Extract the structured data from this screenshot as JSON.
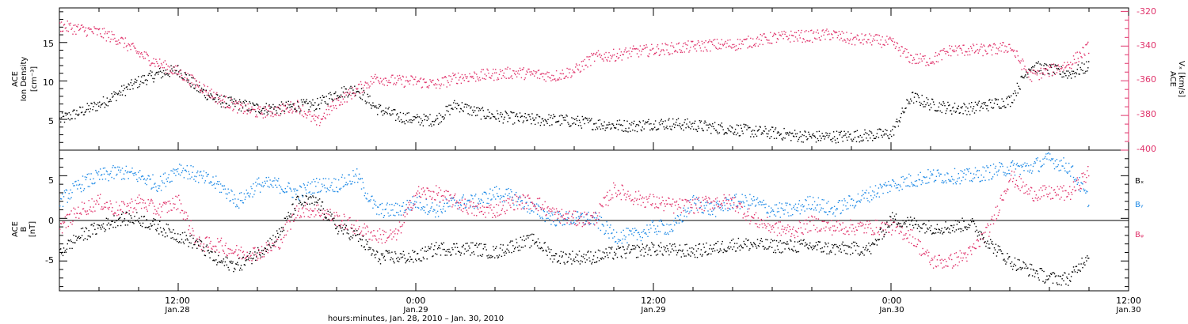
{
  "colors": {
    "black": "#000000",
    "blue": "#1f8ae6",
    "pink": "#e0336b"
  },
  "top_panel": {
    "ylabel_lines": [
      "ACE",
      "Ion Density",
      "[cm⁻³]"
    ],
    "yticks": [
      "5",
      "10",
      "15"
    ],
    "right_ylabel_lines": [
      "ACE",
      "Vₓ [km/s]"
    ],
    "right_yticks": [
      "-320",
      "-340",
      "-360",
      "-380",
      "-400"
    ]
  },
  "bottom_panel": {
    "ylabel_lines": [
      "ACE",
      "B",
      "[nT]"
    ],
    "yticks": [
      "5",
      "0",
      "-5"
    ],
    "legend": [
      "Bₓ",
      "Bᵧ",
      "Bᵩ"
    ]
  },
  "xaxis": {
    "ticks": [
      {
        "time": "12:00",
        "date": "Jan.28"
      },
      {
        "time": "0:00",
        "date": "Jan.29"
      },
      {
        "time": "12:00",
        "date": "Jan.29"
      },
      {
        "time": "0:00",
        "date": "Jan.30"
      },
      {
        "time": "12:00",
        "date": "Jan.30"
      }
    ],
    "title": "hours:minutes, Jan. 28, 2010 – Jan. 30, 2010"
  },
  "chart_data": [
    {
      "type": "scatter",
      "panel": "ion density and Vx",
      "x_unit": "hours since 00:00 Jan. 28, 2010",
      "xlim": [
        6,
        60
      ],
      "ylim_left": [
        1,
        19.5
      ],
      "ylim_right": [
        -400,
        -318
      ],
      "series": [
        {
          "name": "Ion Density",
          "axis": "left",
          "color": "black",
          "x": [
            6,
            7,
            8,
            9,
            10,
            11,
            12,
            13,
            14,
            15,
            16,
            17,
            18,
            19,
            20,
            21,
            22,
            23,
            24,
            25,
            26,
            27,
            28,
            29,
            30,
            31,
            32,
            33,
            34,
            35,
            36,
            37,
            38,
            39,
            40,
            41,
            42,
            43,
            44,
            45,
            46,
            47,
            48,
            49,
            50,
            51,
            52,
            53,
            54,
            55,
            56,
            57,
            58
          ],
          "y": [
            5,
            6,
            7,
            8.5,
            10,
            11,
            11.5,
            9,
            7.5,
            7,
            6.5,
            6.5,
            6.8,
            7,
            8.5,
            9,
            6.5,
            5.5,
            5,
            5,
            7,
            6,
            5.5,
            5.2,
            5,
            5,
            4.8,
            4.5,
            4.3,
            4.2,
            4.5,
            4.5,
            4.3,
            4,
            3.8,
            3.5,
            3.3,
            3,
            2.8,
            2.8,
            2.9,
            3,
            3.2,
            8,
            7,
            6.5,
            6.5,
            7,
            7.5,
            12,
            11.5,
            11,
            12
          ]
        },
        {
          "name": "Vx",
          "axis": "right",
          "color": "pink",
          "x": [
            6,
            7,
            8,
            9,
            10,
            11,
            12,
            13,
            14,
            15,
            16,
            17,
            18,
            19,
            20,
            21,
            22,
            23,
            24,
            25,
            26,
            27,
            28,
            29,
            30,
            31,
            32,
            33,
            34,
            35,
            36,
            37,
            38,
            39,
            40,
            41,
            42,
            43,
            44,
            45,
            46,
            47,
            48,
            49,
            50,
            51,
            52,
            53,
            54,
            55,
            56,
            57,
            58
          ],
          "y": [
            -328,
            -330,
            -332,
            -336,
            -344,
            -350,
            -355,
            -362,
            -370,
            -375,
            -378,
            -377,
            -374,
            -384,
            -372,
            -365,
            -358,
            -360,
            -360,
            -362,
            -358,
            -357,
            -356,
            -355,
            -356,
            -357,
            -354,
            -346,
            -345,
            -343,
            -342,
            -341,
            -340,
            -339,
            -339,
            -337,
            -335,
            -334,
            -334,
            -333,
            -336,
            -336,
            -338,
            -347,
            -348,
            -342,
            -342,
            -342,
            -340,
            -357,
            -354,
            -350,
            -340
          ]
        }
      ]
    },
    {
      "type": "scatter",
      "panel": "magnetic field B",
      "x_unit": "hours since 00:00 Jan. 28, 2010",
      "xlim": [
        6,
        60
      ],
      "ylim": [
        -8.5,
        8
      ],
      "series": [
        {
          "name": "Bₓ",
          "color": "black",
          "x": [
            6,
            7,
            8,
            9,
            10,
            11,
            12,
            13,
            14,
            15,
            16,
            17,
            18,
            19,
            20,
            21,
            22,
            23,
            24,
            25,
            26,
            27,
            28,
            29,
            30,
            31,
            32,
            33,
            34,
            35,
            36,
            37,
            38,
            39,
            40,
            41,
            42,
            43,
            44,
            45,
            46,
            47,
            48,
            49,
            50,
            51,
            52,
            53,
            54,
            55,
            56,
            57,
            58
          ],
          "y": [
            -4,
            -2,
            -1,
            0,
            0,
            -1,
            -2,
            -3,
            -5,
            -5.5,
            -4,
            -2,
            2,
            2,
            -1,
            -2,
            -4.5,
            -4.5,
            -4.5,
            -3.5,
            -3.5,
            -3.5,
            -4,
            -3,
            -2.5,
            -4.5,
            -4.5,
            -4.5,
            -4,
            -3.8,
            -3.5,
            -3.7,
            -3.8,
            -3.5,
            -3,
            -3,
            -3.2,
            -3.2,
            -3.2,
            -3.5,
            -3.5,
            -3.5,
            0,
            -0.5,
            -1,
            -1,
            -0.5,
            -3,
            -5,
            -6,
            -7,
            -7,
            -4
          ]
        },
        {
          "name": "Bᵧ",
          "color": "blue",
          "x": [
            6,
            7,
            8,
            9,
            10,
            11,
            12,
            13,
            14,
            15,
            16,
            17,
            18,
            19,
            20,
            21,
            22,
            23,
            24,
            25,
            26,
            27,
            28,
            29,
            30,
            31,
            32,
            33,
            34,
            35,
            36,
            37,
            38,
            39,
            40,
            41,
            42,
            43,
            44,
            45,
            46,
            47,
            48,
            49,
            50,
            51,
            52,
            53,
            54,
            55,
            56,
            57,
            58
          ],
          "y": [
            2,
            4,
            5,
            5.5,
            5,
            4,
            6,
            5,
            4,
            2,
            4,
            4,
            3,
            4,
            4,
            5,
            1,
            1,
            2,
            1,
            2,
            2,
            3,
            2.5,
            1,
            0,
            0,
            0,
            -2,
            -2,
            -1,
            -1,
            2,
            1,
            2,
            2,
            1,
            1,
            2,
            1,
            2,
            3,
            4,
            4.5,
            5,
            5,
            5,
            5.5,
            6,
            6,
            7,
            6,
            2
          ]
        },
        {
          "name": "Bᵩ",
          "color": "pink",
          "x": [
            6,
            7,
            8,
            9,
            10,
            11,
            12,
            13,
            14,
            15,
            16,
            17,
            18,
            19,
            20,
            21,
            22,
            23,
            24,
            25,
            26,
            27,
            28,
            29,
            30,
            31,
            32,
            33,
            34,
            35,
            36,
            37,
            38,
            39,
            40,
            41,
            42,
            43,
            44,
            45,
            46,
            47,
            48,
            49,
            50,
            51,
            52,
            53,
            54,
            55,
            56,
            57,
            58
          ],
          "y": [
            -1,
            1,
            2,
            1,
            2,
            1,
            2,
            -3,
            -3,
            -4,
            -4,
            -3,
            1,
            1,
            0,
            -1,
            -2,
            -2,
            3,
            3,
            2,
            1,
            1,
            2,
            2,
            0.5,
            0,
            0,
            3.5,
            2.5,
            2,
            1.5,
            1.5,
            2,
            2,
            0,
            -1,
            -1.5,
            -0.5,
            -1,
            -1,
            -1,
            -1,
            -2,
            -5,
            -5,
            -4,
            -1,
            5,
            3,
            3,
            3,
            5.5
          ]
        }
      ]
    }
  ]
}
